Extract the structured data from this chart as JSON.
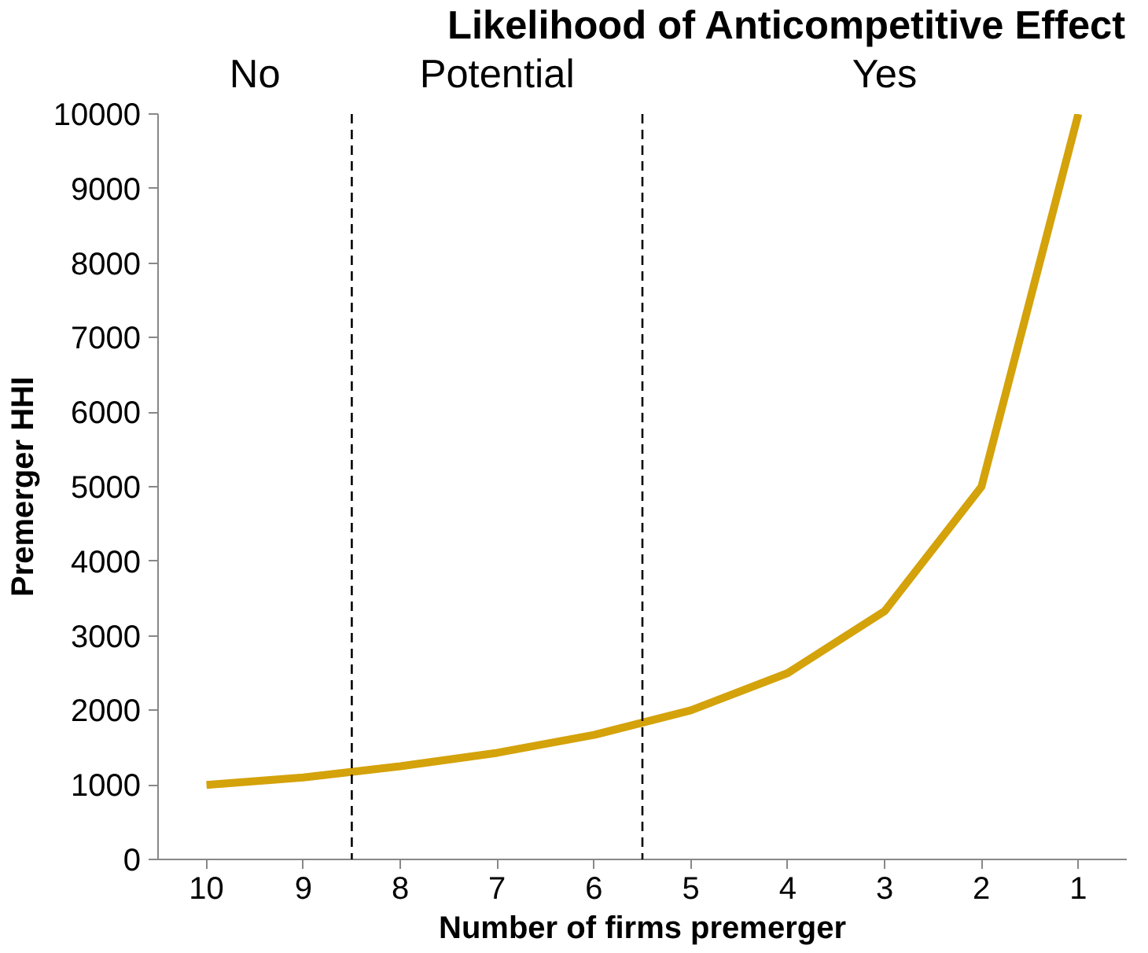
{
  "chart_data": {
    "type": "line",
    "title": "Likelihood of Anticompetitive Effect",
    "xlabel": "Number of firms premerger",
    "ylabel": "Premerger HHI",
    "x": [
      10,
      9,
      8,
      7,
      6,
      5,
      4,
      3,
      2,
      1
    ],
    "series": [
      {
        "color": "#d4a20a",
        "values": [
          1000,
          1100,
          1250,
          1430,
          1670,
          2000,
          2500,
          3330,
          5000,
          10000
        ]
      }
    ],
    "xlim": [
      10.5,
      0.5
    ],
    "xticks": [
      10,
      9,
      8,
      7,
      6,
      5,
      4,
      3,
      2,
      1
    ],
    "ylim": [
      0,
      10000
    ],
    "yticks": [
      0,
      1000,
      2000,
      3000,
      4000,
      5000,
      6000,
      7000,
      8000,
      9000,
      10000
    ],
    "ref_lines": [
      {
        "axis": "x",
        "value": 8.5,
        "line_style": "dashed",
        "color": "#000000"
      },
      {
        "axis": "x",
        "value": 5.5,
        "line_style": "dashed",
        "color": "#000000"
      }
    ],
    "annotations": [
      "No",
      "Potential",
      "Yes"
    ],
    "grid": false,
    "marker": "none",
    "line_style": "solid"
  }
}
